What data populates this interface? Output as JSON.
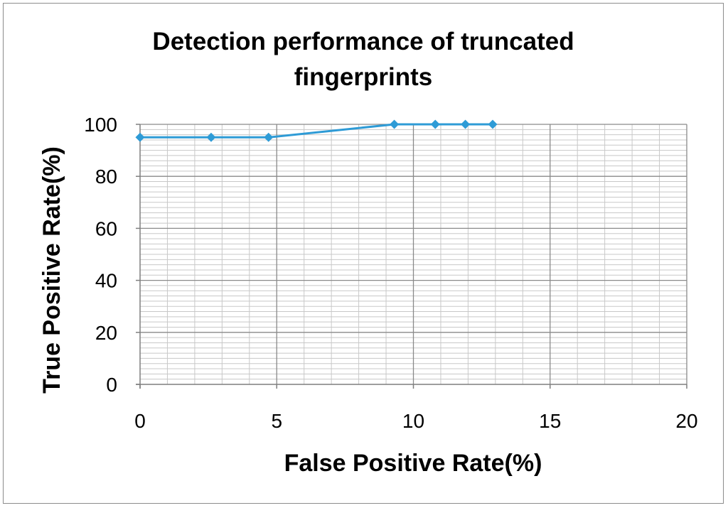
{
  "chart_data": {
    "type": "line",
    "title_lines": [
      "Detection performance of truncated",
      "fingerprints"
    ],
    "xlabel": "False Positive Rate(%)",
    "ylabel": "True  Positive Rate(%)",
    "xlim": [
      0,
      20
    ],
    "ylim": [
      0,
      100
    ],
    "x_ticks": [
      "0",
      "5",
      "10",
      "15",
      "20"
    ],
    "y_ticks": [
      "0",
      "20",
      "40",
      "60",
      "80",
      "100"
    ],
    "grid": true,
    "legend": "none",
    "series": [
      {
        "color": "#2e9bd6",
        "marker": "diamond",
        "points": [
          {
            "x": 0,
            "y": 95
          },
          {
            "x": 2.6,
            "y": 95
          },
          {
            "x": 4.7,
            "y": 95
          },
          {
            "x": 9.3,
            "y": 100
          },
          {
            "x": 10.8,
            "y": 100
          },
          {
            "x": 11.9,
            "y": 100
          },
          {
            "x": 12.9,
            "y": 100
          }
        ]
      }
    ]
  }
}
